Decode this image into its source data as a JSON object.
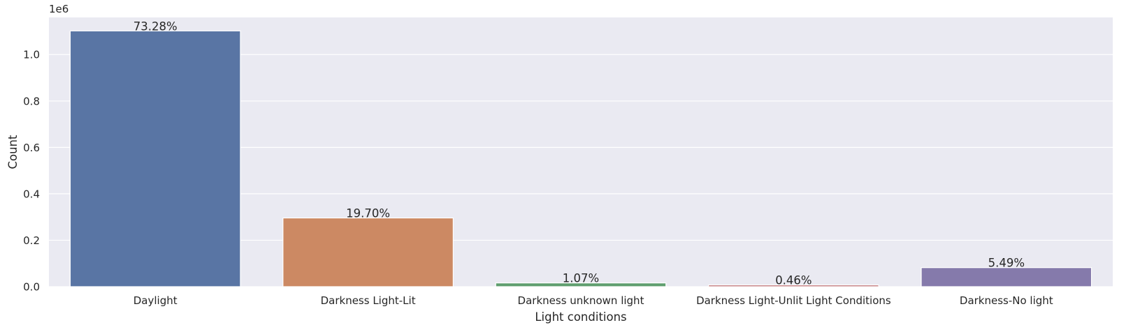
{
  "chart_data": {
    "type": "bar",
    "xlabel": "Light conditions",
    "ylabel": "Count",
    "y_scale_label": "1e6",
    "y_scale": 1000000,
    "ylim": [
      0,
      1.16
    ],
    "yticks": [
      0.0,
      0.2,
      0.4,
      0.6,
      0.8,
      1.0
    ],
    "ytick_labels": [
      "0.0",
      "0.2",
      "0.4",
      "0.6",
      "0.8",
      "1.0"
    ],
    "grid": true,
    "categories": [
      "Daylight",
      "Darkness Light-Lit",
      "Darkness unknown light",
      "Darkness Light-Unlit Light Conditions",
      "Darkness-No light"
    ],
    "values": [
      1.102,
      0.296,
      0.016,
      0.007,
      0.082
    ],
    "data_labels": [
      "73.28%",
      "19.70%",
      "1.07%",
      "0.46%",
      "5.49%"
    ],
    "colors": [
      "#5975a4",
      "#cc8963",
      "#5f9e6e",
      "#b55d60",
      "#857aab"
    ],
    "background": "#eaeaf2",
    "grid_color": "#ffffff"
  }
}
